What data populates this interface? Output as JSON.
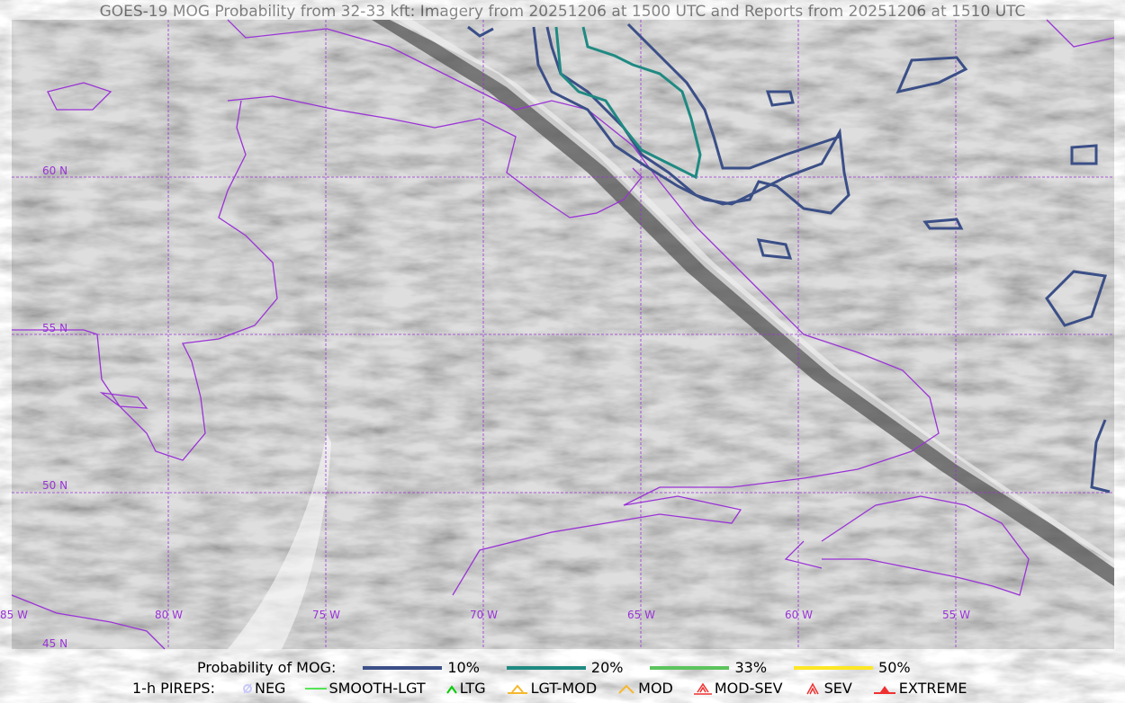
{
  "title": "GOES-19 MOG Probability from 32-33 kft: Imagery from 20251206 at 1500 UTC and Reports from 20251206 at 1510 UTC",
  "map": {
    "lat_labels": [
      "60 N",
      "55 N",
      "50 N",
      "45 N"
    ],
    "lon_labels": [
      "85 W",
      "80 W",
      "75 W",
      "70 W",
      "65 W",
      "60 W",
      "55 W"
    ],
    "coastline_color": "#9a33d6",
    "gridline_color": "#9a33d6"
  },
  "legend": {
    "probability_label": "Probability of MOG:",
    "probability_items": [
      {
        "label": "10%",
        "color": "#3b4f87"
      },
      {
        "label": "20%",
        "color": "#1f8a82"
      },
      {
        "label": "33%",
        "color": "#5cc45c"
      },
      {
        "label": "50%",
        "color": "#fde725"
      }
    ],
    "pireps_label": "1-h PIREPS:",
    "pirep_items": [
      {
        "label": "NEG",
        "icon": "neg-circle-icon",
        "color": "#c8c8f8"
      },
      {
        "label": "SMOOTH-LGT",
        "icon": "dash-icon",
        "color": "#22e022"
      },
      {
        "label": "LTG",
        "icon": "caret-icon",
        "color": "#00cc00"
      },
      {
        "label": "LGT-MOD",
        "icon": "caret-bar-icon",
        "color": "#f5b82e"
      },
      {
        "label": "MOD",
        "icon": "double-caret-icon",
        "color": "#f5b82e"
      },
      {
        "label": "MOD-SEV",
        "icon": "double-caret-bar-icon",
        "color": "#f03030"
      },
      {
        "label": "SEV",
        "icon": "double-caret-icon",
        "color": "#f03030"
      },
      {
        "label": "EXTREME",
        "icon": "filled-triangle-icon",
        "color": "#f03030"
      }
    ]
  }
}
